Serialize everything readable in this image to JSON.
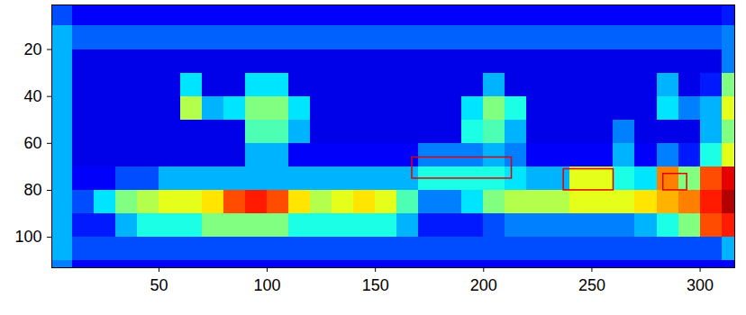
{
  "chart_data": {
    "type": "heatmap",
    "xlim": [
      0.5,
      316
    ],
    "ylim": [
      113,
      1
    ],
    "xticks": [
      50,
      100,
      150,
      200,
      250,
      300
    ],
    "yticks": [
      20,
      40,
      60,
      80,
      100
    ],
    "grid": false,
    "clim": [
      0,
      1
    ],
    "x_edges": [
      0,
      10,
      20,
      30,
      40,
      50,
      60,
      70,
      80,
      90,
      100,
      110,
      120,
      130,
      140,
      150,
      160,
      170,
      180,
      190,
      200,
      210,
      220,
      230,
      240,
      250,
      260,
      270,
      280,
      290,
      300,
      310,
      320
    ],
    "y_edges": [
      0,
      10,
      20,
      30,
      40,
      50,
      60,
      70,
      80,
      90,
      100,
      110,
      120
    ],
    "cells": [
      [
        0.2,
        0.12,
        0.12,
        0.12,
        0.12,
        0.12,
        0.12,
        0.12,
        0.12,
        0.12,
        0.12,
        0.12,
        0.12,
        0.12,
        0.12,
        0.12,
        0.12,
        0.12,
        0.12,
        0.12,
        0.12,
        0.12,
        0.12,
        0.12,
        0.12,
        0.12,
        0.12,
        0.12,
        0.12,
        0.12,
        0.12,
        0.15
      ],
      [
        0.3,
        0.22,
        0.22,
        0.22,
        0.22,
        0.22,
        0.22,
        0.22,
        0.22,
        0.22,
        0.22,
        0.22,
        0.22,
        0.22,
        0.22,
        0.22,
        0.22,
        0.22,
        0.22,
        0.22,
        0.22,
        0.22,
        0.22,
        0.22,
        0.22,
        0.22,
        0.22,
        0.22,
        0.22,
        0.22,
        0.22,
        0.25
      ],
      [
        0.3,
        0.1,
        0.1,
        0.1,
        0.1,
        0.1,
        0.1,
        0.1,
        0.1,
        0.1,
        0.1,
        0.1,
        0.1,
        0.1,
        0.1,
        0.1,
        0.1,
        0.1,
        0.1,
        0.1,
        0.1,
        0.1,
        0.1,
        0.1,
        0.1,
        0.1,
        0.1,
        0.1,
        0.1,
        0.1,
        0.1,
        0.25
      ],
      [
        0.3,
        0.1,
        0.1,
        0.1,
        0.1,
        0.1,
        0.35,
        0.1,
        0.1,
        0.35,
        0.35,
        0.1,
        0.1,
        0.1,
        0.1,
        0.1,
        0.1,
        0.1,
        0.1,
        0.1,
        0.3,
        0.1,
        0.1,
        0.1,
        0.1,
        0.1,
        0.1,
        0.1,
        0.3,
        0.1,
        0.15,
        0.5
      ],
      [
        0.3,
        0.1,
        0.1,
        0.1,
        0.1,
        0.1,
        0.55,
        0.3,
        0.35,
        0.5,
        0.5,
        0.35,
        0.1,
        0.1,
        0.1,
        0.1,
        0.1,
        0.1,
        0.1,
        0.35,
        0.5,
        0.4,
        0.1,
        0.1,
        0.1,
        0.1,
        0.1,
        0.1,
        0.35,
        0.25,
        0.3,
        0.6
      ],
      [
        0.3,
        0.1,
        0.1,
        0.1,
        0.1,
        0.1,
        0.1,
        0.1,
        0.1,
        0.45,
        0.45,
        0.3,
        0.1,
        0.1,
        0.1,
        0.1,
        0.1,
        0.1,
        0.1,
        0.4,
        0.45,
        0.3,
        0.1,
        0.1,
        0.1,
        0.1,
        0.25,
        0.1,
        0.1,
        0.1,
        0.3,
        0.5
      ],
      [
        0.3,
        0.1,
        0.1,
        0.1,
        0.1,
        0.1,
        0.1,
        0.1,
        0.1,
        0.3,
        0.3,
        0.12,
        0.12,
        0.12,
        0.12,
        0.12,
        0.12,
        0.25,
        0.25,
        0.25,
        0.3,
        0.25,
        0.12,
        0.12,
        0.12,
        0.12,
        0.3,
        0.12,
        0.25,
        0.15,
        0.4,
        0.6
      ],
      [
        0.3,
        0.12,
        0.12,
        0.2,
        0.2,
        0.3,
        0.3,
        0.3,
        0.3,
        0.3,
        0.3,
        0.3,
        0.3,
        0.3,
        0.3,
        0.3,
        0.3,
        0.4,
        0.4,
        0.4,
        0.4,
        0.35,
        0.3,
        0.3,
        0.6,
        0.6,
        0.4,
        0.35,
        0.75,
        0.5,
        0.8,
        0.9
      ],
      [
        0.3,
        0.2,
        0.35,
        0.5,
        0.55,
        0.6,
        0.6,
        0.65,
        0.8,
        0.85,
        0.8,
        0.65,
        0.55,
        0.6,
        0.65,
        0.6,
        0.45,
        0.25,
        0.25,
        0.35,
        0.5,
        0.55,
        0.55,
        0.55,
        0.6,
        0.6,
        0.6,
        0.65,
        0.7,
        0.75,
        0.85,
        0.95
      ],
      [
        0.3,
        0.15,
        0.15,
        0.3,
        0.4,
        0.4,
        0.4,
        0.5,
        0.5,
        0.5,
        0.5,
        0.4,
        0.4,
        0.4,
        0.4,
        0.4,
        0.3,
        0.15,
        0.15,
        0.15,
        0.2,
        0.25,
        0.25,
        0.25,
        0.25,
        0.25,
        0.25,
        0.3,
        0.4,
        0.5,
        0.8,
        0.85
      ],
      [
        0.3,
        0.2,
        0.2,
        0.2,
        0.2,
        0.2,
        0.2,
        0.2,
        0.2,
        0.2,
        0.2,
        0.2,
        0.2,
        0.2,
        0.2,
        0.2,
        0.2,
        0.2,
        0.2,
        0.2,
        0.2,
        0.2,
        0.2,
        0.2,
        0.2,
        0.2,
        0.2,
        0.2,
        0.2,
        0.2,
        0.2,
        0.3
      ],
      [
        0.25,
        0.12,
        0.12,
        0.12,
        0.12,
        0.12,
        0.12,
        0.12,
        0.12,
        0.12,
        0.12,
        0.12,
        0.12,
        0.12,
        0.12,
        0.12,
        0.12,
        0.12,
        0.12,
        0.12,
        0.12,
        0.12,
        0.12,
        0.12,
        0.12,
        0.12,
        0.12,
        0.12,
        0.12,
        0.12,
        0.12,
        0.12
      ]
    ],
    "boxes": [
      {
        "x1": 167,
        "x2": 213,
        "y1": 66,
        "y2": 75,
        "color": "#e00000"
      },
      {
        "x1": 237,
        "x2": 260,
        "y1": 71,
        "y2": 80,
        "color": "#e00000"
      },
      {
        "x1": 283,
        "x2": 294,
        "y1": 73,
        "y2": 80,
        "color": "#e00000"
      }
    ]
  }
}
